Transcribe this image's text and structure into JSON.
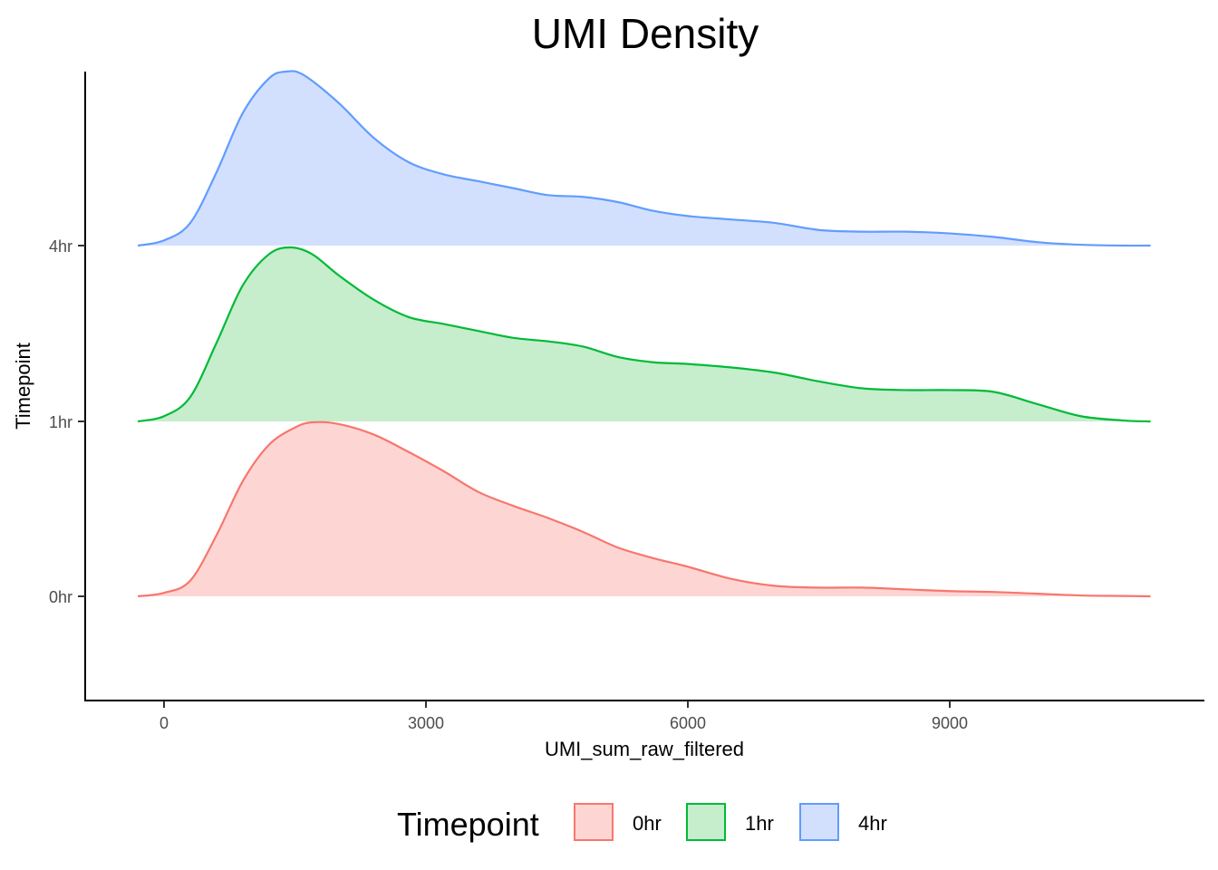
{
  "chart_data": {
    "type": "area",
    "title": "UMI Density",
    "xlabel": "UMI_sum_raw_filtered",
    "ylabel": "Timepoint",
    "xlim": [
      -300,
      11300
    ],
    "x_ticks": [
      0,
      3000,
      6000,
      9000
    ],
    "x_tick_labels": [
      "0",
      "3000",
      "6000",
      "9000"
    ],
    "categories": [
      "0hr",
      "1hr",
      "4hr"
    ],
    "grid": false,
    "legend": {
      "title": "Timepoint",
      "position": "bottom",
      "entries": [
        "0hr",
        "1hr",
        "4hr"
      ]
    },
    "series": [
      {
        "name": "0hr",
        "color": "#F8766D",
        "fill": "#FDD6D4",
        "x": [
          -300,
          0,
          300,
          600,
          900,
          1200,
          1500,
          1700,
          2000,
          2400,
          2800,
          3200,
          3600,
          4000,
          4400,
          4800,
          5200,
          5600,
          6000,
          6500,
          7000,
          7500,
          8000,
          8500,
          9000,
          9500,
          10000,
          10500,
          11000,
          11300
        ],
        "density": [
          0.0,
          0.02,
          0.09,
          0.35,
          0.66,
          0.87,
          0.97,
          1.0,
          0.99,
          0.93,
          0.83,
          0.72,
          0.6,
          0.52,
          0.45,
          0.37,
          0.28,
          0.22,
          0.17,
          0.1,
          0.06,
          0.05,
          0.05,
          0.04,
          0.03,
          0.025,
          0.015,
          0.005,
          0.002,
          0.0
        ]
      },
      {
        "name": "1hr",
        "color": "#00BA38",
        "fill": "#C6EDCC",
        "x": [
          -300,
          0,
          300,
          600,
          900,
          1200,
          1450,
          1700,
          2000,
          2400,
          2800,
          3200,
          3600,
          4000,
          4400,
          4800,
          5200,
          5600,
          6000,
          6500,
          7000,
          7500,
          8000,
          8500,
          9000,
          9500,
          10000,
          10500,
          11000,
          11300
        ],
        "density": [
          0.0,
          0.03,
          0.14,
          0.45,
          0.78,
          0.96,
          1.0,
          0.96,
          0.84,
          0.7,
          0.6,
          0.56,
          0.52,
          0.48,
          0.46,
          0.43,
          0.37,
          0.34,
          0.33,
          0.31,
          0.28,
          0.23,
          0.19,
          0.18,
          0.18,
          0.17,
          0.1,
          0.03,
          0.005,
          0.0
        ]
      },
      {
        "name": "4hr",
        "color": "#619CFF",
        "fill": "#D3E0FD",
        "x": [
          -300,
          0,
          300,
          600,
          900,
          1200,
          1400,
          1600,
          2000,
          2400,
          2800,
          3200,
          3600,
          4000,
          4400,
          4800,
          5200,
          5600,
          6000,
          6500,
          7000,
          7500,
          8000,
          8500,
          9000,
          9500,
          10000,
          10500,
          11000,
          11300
        ],
        "density": [
          0.0,
          0.03,
          0.13,
          0.42,
          0.76,
          0.96,
          1.0,
          0.98,
          0.82,
          0.62,
          0.48,
          0.41,
          0.37,
          0.33,
          0.29,
          0.28,
          0.25,
          0.2,
          0.17,
          0.15,
          0.13,
          0.09,
          0.08,
          0.08,
          0.07,
          0.05,
          0.02,
          0.005,
          0.0,
          0.0
        ]
      }
    ]
  }
}
